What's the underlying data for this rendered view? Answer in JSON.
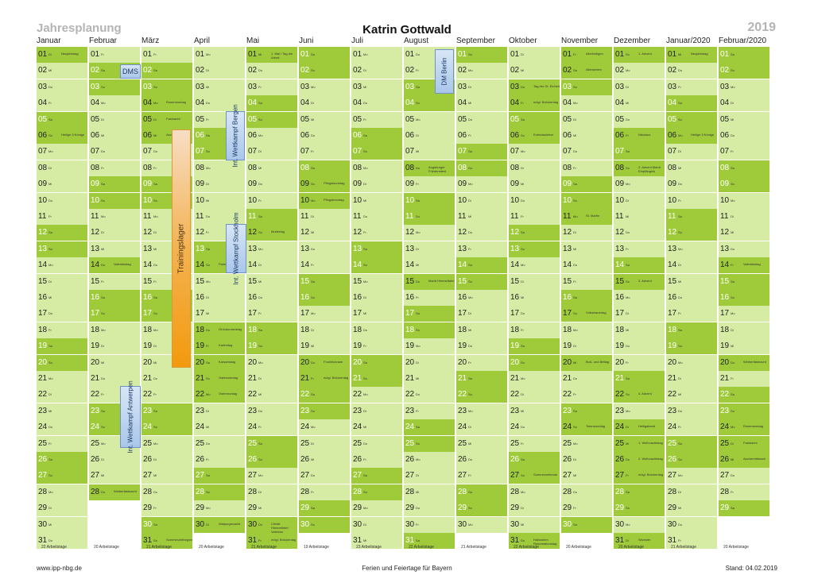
{
  "header": {
    "left": "Jahresplanung",
    "center": "Katrin Gottwald",
    "right": "2019"
  },
  "months": [
    {
      "name": "Januar",
      "days": 31,
      "start": 1,
      "count": "22 Arbeitstage"
    },
    {
      "name": "Februar",
      "days": 28,
      "start": 4,
      "count": "20 Arbeitstage"
    },
    {
      "name": "März",
      "days": 31,
      "start": 4,
      "count": "21 Arbeitstage"
    },
    {
      "name": "April",
      "days": 30,
      "start": 0,
      "count": "20 Arbeitstage"
    },
    {
      "name": "Mai",
      "days": 31,
      "start": 2,
      "count": "21 Arbeitstage"
    },
    {
      "name": "Juni",
      "days": 30,
      "start": 5,
      "count": "19 Arbeitstage"
    },
    {
      "name": "Juli",
      "days": 31,
      "start": 0,
      "count": "23 Arbeitstage"
    },
    {
      "name": "August",
      "days": 31,
      "start": 3,
      "count": "22 Arbeitstage"
    },
    {
      "name": "September",
      "days": 30,
      "start": 6,
      "count": "21 Arbeitstage"
    },
    {
      "name": "Oktober",
      "days": 31,
      "start": 1,
      "count": "22 Arbeitstage"
    },
    {
      "name": "November",
      "days": 30,
      "start": 4,
      "count": "20 Arbeitstage"
    },
    {
      "name": "Dezember",
      "days": 31,
      "start": 6,
      "count": "20 Arbeitstage"
    },
    {
      "name": "Januar/2020",
      "days": 31,
      "start": 2,
      "count": "21 Arbeitstage"
    },
    {
      "name": "Februar/2020",
      "days": 29,
      "start": 5,
      "count": "20 Arbeitstage"
    }
  ],
  "weekday_abbr": [
    "Mo",
    "Di",
    "Mi",
    "Do",
    "Fr",
    "Sa",
    "So"
  ],
  "holidays": [
    {
      "m": 0,
      "d": 1,
      "text": "Neujahrstag"
    },
    {
      "m": 0,
      "d": 6,
      "text": "Heilige 3 Könige"
    },
    {
      "m": 1,
      "d": 14,
      "text": "Valentinstag"
    },
    {
      "m": 1,
      "d": 28,
      "text": "Weiberfastnacht"
    },
    {
      "m": 2,
      "d": 4,
      "text": "Rosenmontag"
    },
    {
      "m": 2,
      "d": 5,
      "text": "Fastnacht"
    },
    {
      "m": 2,
      "d": 6,
      "text": "Ascher"
    },
    {
      "m": 2,
      "d": 31,
      "text": "Sommerzeitbeginn"
    },
    {
      "m": 3,
      "d": 14,
      "text": "Palmsonntag"
    },
    {
      "m": 3,
      "d": 18,
      "text": "Gründonnerstag"
    },
    {
      "m": 3,
      "d": 19,
      "text": "Karfreitag"
    },
    {
      "m": 3,
      "d": 20,
      "text": "Karsamstag"
    },
    {
      "m": 3,
      "d": 21,
      "text": "Ostersonntag"
    },
    {
      "m": 3,
      "d": 22,
      "text": "Ostermontag"
    },
    {
      "m": 3,
      "d": 30,
      "text": "Walpurgisnacht"
    },
    {
      "m": 4,
      "d": 1,
      "text": "1. Mai / Tag der Arbeit"
    },
    {
      "m": 4,
      "d": 12,
      "text": "Muttertag"
    },
    {
      "m": 4,
      "d": 30,
      "text": "Christi Himmelfahrt Vatertag"
    },
    {
      "m": 4,
      "d": 31,
      "text": "mögl. Brückentag"
    },
    {
      "m": 5,
      "d": 9,
      "text": "Pfingstsonntag"
    },
    {
      "m": 5,
      "d": 10,
      "text": "Pfingstmontag"
    },
    {
      "m": 5,
      "d": 20,
      "text": "Fronleichnam"
    },
    {
      "m": 5,
      "d": 21,
      "text": "mögl. Brückentag"
    },
    {
      "m": 7,
      "d": 8,
      "text": "Augsburger Friedensfest"
    },
    {
      "m": 7,
      "d": 15,
      "text": "Mariä Himmelfahrt"
    },
    {
      "m": 9,
      "d": 3,
      "text": "Tag der Dt. Einheit"
    },
    {
      "m": 9,
      "d": 4,
      "text": "mögl. Brückentag"
    },
    {
      "m": 9,
      "d": 6,
      "text": "Erntedankfest"
    },
    {
      "m": 9,
      "d": 27,
      "text": "Sommerzeitende"
    },
    {
      "m": 9,
      "d": 31,
      "text": "Halloween Reformationstag"
    },
    {
      "m": 10,
      "d": 1,
      "text": "Allerheiligen"
    },
    {
      "m": 10,
      "d": 2,
      "text": "Allerseelen"
    },
    {
      "m": 10,
      "d": 11,
      "text": "St. Martin"
    },
    {
      "m": 10,
      "d": 17,
      "text": "Volkstrauertag"
    },
    {
      "m": 10,
      "d": 20,
      "text": "Buß- und Bettag"
    },
    {
      "m": 10,
      "d": 24,
      "text": "Totensonntag"
    },
    {
      "m": 11,
      "d": 1,
      "text": "1. Advent"
    },
    {
      "m": 11,
      "d": 6,
      "text": "Nikolaus"
    },
    {
      "m": 11,
      "d": 8,
      "text": "2. Advent Mariä Empfängnis"
    },
    {
      "m": 11,
      "d": 15,
      "text": "3. Advent"
    },
    {
      "m": 11,
      "d": 22,
      "text": "4. Advent"
    },
    {
      "m": 11,
      "d": 24,
      "text": "Heiligabend"
    },
    {
      "m": 11,
      "d": 25,
      "text": "1. Weihnachtstag"
    },
    {
      "m": 11,
      "d": 26,
      "text": "2. Weihnachtstag"
    },
    {
      "m": 11,
      "d": 27,
      "text": "mögl. Brückentag"
    },
    {
      "m": 11,
      "d": 31,
      "text": "Silvester"
    },
    {
      "m": 12,
      "d": 1,
      "text": "Neujahrstag"
    },
    {
      "m": 12,
      "d": 6,
      "text": "Heilige 3 Könige"
    },
    {
      "m": 13,
      "d": 14,
      "text": "Valentinstag"
    },
    {
      "m": 13,
      "d": 20,
      "text": "Weiberfastnacht"
    },
    {
      "m": 13,
      "d": 24,
      "text": "Rosenmontag"
    },
    {
      "m": 13,
      "d": 25,
      "text": "Fastnacht"
    },
    {
      "m": 13,
      "d": 26,
      "text": "Aschermittwoch"
    }
  ],
  "events": [
    {
      "label": "DMS",
      "orient": "h"
    },
    {
      "label": "Int. Wettkampf Bergen",
      "orient": "v"
    },
    {
      "label": "Int. Wettkampf Stockholm",
      "orient": "v"
    },
    {
      "label": "Int. Wettkampf Antwerpen",
      "orient": "v"
    },
    {
      "label": "DM Berlin",
      "orient": "v"
    }
  ],
  "camp": {
    "label": "Trainingslager"
  },
  "colors": {
    "weekday": "#d6eba3",
    "weekend": "#9fcb3a",
    "event": "#a9c6ea",
    "camp": "#f29a0d"
  },
  "footer": {
    "left": "www.ipp-nbg.de",
    "center": "Ferien und Feiertage für Bayern",
    "right": "Stand: 04.02.2019"
  }
}
